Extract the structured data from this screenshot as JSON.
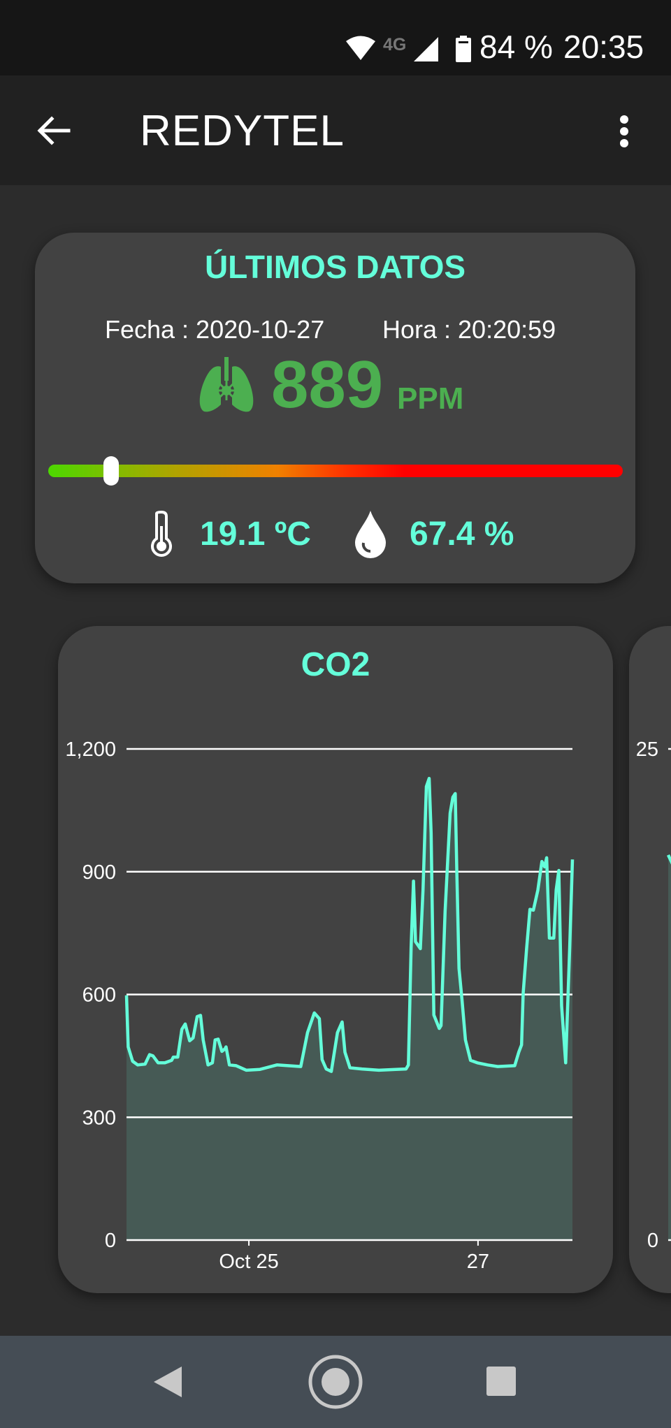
{
  "status_bar": {
    "network_label": "4G",
    "battery": "84 %",
    "time": "20:35",
    "icons": [
      "wifi-icon",
      "signal-icon",
      "battery-icon"
    ]
  },
  "app_bar": {
    "title": "REDYTEL",
    "back_icon": "arrow-left-icon",
    "menu_icon": "more-vert-icon"
  },
  "latest": {
    "title": "ÚLTIMOS DATOS",
    "date_text": "Fecha : 2020-10-27",
    "time_text": "Hora : 20:20:59",
    "co2_value": "889",
    "co2_unit": "PPM",
    "co2_icon": "lungs-virus-icon",
    "gauge_fraction": 0.11,
    "temperature": "19.1 ºC",
    "temperature_icon": "thermometer-icon",
    "humidity": "67.4 %",
    "humidity_icon": "droplet-icon"
  },
  "colors": {
    "accent": "#64ffda",
    "co2_green": "#4caf50",
    "card_bg": "#424242",
    "page_bg": "#2c2c2c",
    "gauge_gradient": [
      "#4cd800",
      "#b0a400",
      "#f08000",
      "#ff3000",
      "#ff0000"
    ]
  },
  "chart_data": [
    {
      "type": "area",
      "title": "CO2",
      "xlabel": "",
      "ylabel": "",
      "ylim": [
        0,
        1200
      ],
      "yticks": [
        0,
        300,
        600,
        900,
        1200
      ],
      "ytick_labels": [
        "0",
        "300",
        "600",
        "900",
        "1,200"
      ],
      "xlim": [
        "2020-10-23 22:22",
        "2020-10-27 19:47"
      ],
      "xticks": [
        {
          "x": "2020-10-25 00:00",
          "label": "Oct 25"
        },
        {
          "x": "2020-10-27 00:00",
          "label": "27"
        }
      ],
      "grid": true,
      "series": [
        {
          "color": "#64ffda",
          "points": [
            [
              "2020-10-23 22:22",
              598
            ],
            [
              "2020-10-23 22:43",
              472
            ],
            [
              "2020-10-23 23:38",
              437
            ],
            [
              "2020-10-24 00:43",
              428
            ],
            [
              "2020-10-24 02:16",
              430
            ],
            [
              "2020-10-24 03:12",
              453
            ],
            [
              "2020-10-24 03:55",
              450
            ],
            [
              "2020-10-24 04:59",
              433
            ],
            [
              "2020-10-24 06:24",
              433
            ],
            [
              "2020-10-24 07:49",
              439
            ],
            [
              "2020-10-24 08:11",
              447
            ],
            [
              "2020-10-24 09:06",
              447
            ],
            [
              "2020-10-24 09:58",
              515
            ],
            [
              "2020-10-24 10:40",
              528
            ],
            [
              "2020-10-24 11:35",
              487
            ],
            [
              "2020-10-24 12:19",
              494
            ],
            [
              "2020-10-24 13:10",
              546
            ],
            [
              "2020-10-24 13:52",
              549
            ],
            [
              "2020-10-24 14:26",
              489
            ],
            [
              "2020-10-24 15:26",
              428
            ],
            [
              "2020-10-24 16:22",
              433
            ],
            [
              "2020-10-24 16:56",
              489
            ],
            [
              "2020-10-24 17:34",
              491
            ],
            [
              "2020-10-24 18:21",
              461
            ],
            [
              "2020-10-24 18:59",
              467
            ],
            [
              "2020-10-24 19:13",
              472
            ],
            [
              "2020-10-24 19:55",
              428
            ],
            [
              "2020-10-24 21:20",
              426
            ],
            [
              "2020-10-24 23:29",
              415
            ],
            [
              "2020-10-25 02:19",
              417
            ],
            [
              "2020-10-25 05:53",
              428
            ],
            [
              "2020-10-25 10:52",
              424
            ],
            [
              "2020-10-25 12:17",
              507
            ],
            [
              "2020-10-25 13:43",
              555
            ],
            [
              "2020-10-25 14:46",
              541
            ],
            [
              "2020-10-25 15:20",
              441
            ],
            [
              "2020-10-25 16:12",
              418
            ],
            [
              "2020-10-25 17:16",
              412
            ],
            [
              "2020-10-25 18:33",
              507
            ],
            [
              "2020-10-25 19:32",
              533
            ],
            [
              "2020-10-25 20:07",
              459
            ],
            [
              "2020-10-25 21:11",
              421
            ],
            [
              "2020-10-25 23:40",
              418
            ],
            [
              "2020-10-26 03:14",
              415
            ],
            [
              "2020-10-26 06:47",
              417
            ],
            [
              "2020-10-26 08:55",
              418
            ],
            [
              "2020-10-26 09:25",
              428
            ],
            [
              "2020-10-26 09:59",
              716
            ],
            [
              "2020-10-26 10:29",
              877
            ],
            [
              "2020-10-26 10:55",
              729
            ],
            [
              "2020-10-26 11:55",
              712
            ],
            [
              "2020-10-26 12:29",
              855
            ],
            [
              "2020-10-26 13:11",
              1108
            ],
            [
              "2020-10-26 13:46",
              1128
            ],
            [
              "2020-10-26 14:11",
              995
            ],
            [
              "2020-10-26 14:45",
              550
            ],
            [
              "2020-10-26 15:53",
              517
            ],
            [
              "2020-10-26 16:15",
              524
            ],
            [
              "2020-10-26 17:06",
              803
            ],
            [
              "2020-10-26 18:10",
              1043
            ],
            [
              "2020-10-26 18:44",
              1082
            ],
            [
              "2020-10-26 19:14",
              1091
            ],
            [
              "2020-10-26 19:35",
              890
            ],
            [
              "2020-10-26 20:01",
              664
            ],
            [
              "2020-10-26 20:40",
              585
            ],
            [
              "2020-10-26 21:22",
              489
            ],
            [
              "2020-10-26 22:26",
              439
            ],
            [
              "2020-10-26 23:52",
              433
            ],
            [
              "2020-10-27 02:00",
              428
            ],
            [
              "2020-10-27 04:08",
              424
            ],
            [
              "2020-10-27 07:41",
              426
            ],
            [
              "2020-10-27 08:32",
              459
            ],
            [
              "2020-10-27 09:07",
              477
            ],
            [
              "2020-10-27 09:28",
              603
            ],
            [
              "2020-10-27 10:11",
              712
            ],
            [
              "2020-10-27 10:53",
              808
            ],
            [
              "2020-10-27 11:36",
              806
            ],
            [
              "2020-10-27 12:32",
              855
            ],
            [
              "2020-10-27 13:23",
              925
            ],
            [
              "2020-10-27 13:57",
              912
            ],
            [
              "2020-10-27 14:23",
              934
            ],
            [
              "2020-10-27 14:57",
              738
            ],
            [
              "2020-10-27 15:52",
              738
            ],
            [
              "2020-10-27 16:22",
              855
            ],
            [
              "2020-10-27 16:56",
              903
            ],
            [
              "2020-10-27 17:31",
              572
            ],
            [
              "2020-10-27 18:22",
              433
            ],
            [
              "2020-10-27 19:13",
              716
            ],
            [
              "2020-10-27 19:47",
              930
            ]
          ]
        }
      ]
    },
    {
      "type": "area",
      "ylim": [
        0,
        25
      ],
      "yticks": [
        0,
        25
      ],
      "ytick_labels": [
        "0",
        "25"
      ],
      "grid": true,
      "series": [
        {
          "color": "#64ffda",
          "values": [
            19.6,
            19.0
          ]
        }
      ]
    }
  ],
  "nav_bar": {
    "icons": [
      "nav-back-icon",
      "nav-home-icon",
      "nav-recents-icon"
    ]
  }
}
